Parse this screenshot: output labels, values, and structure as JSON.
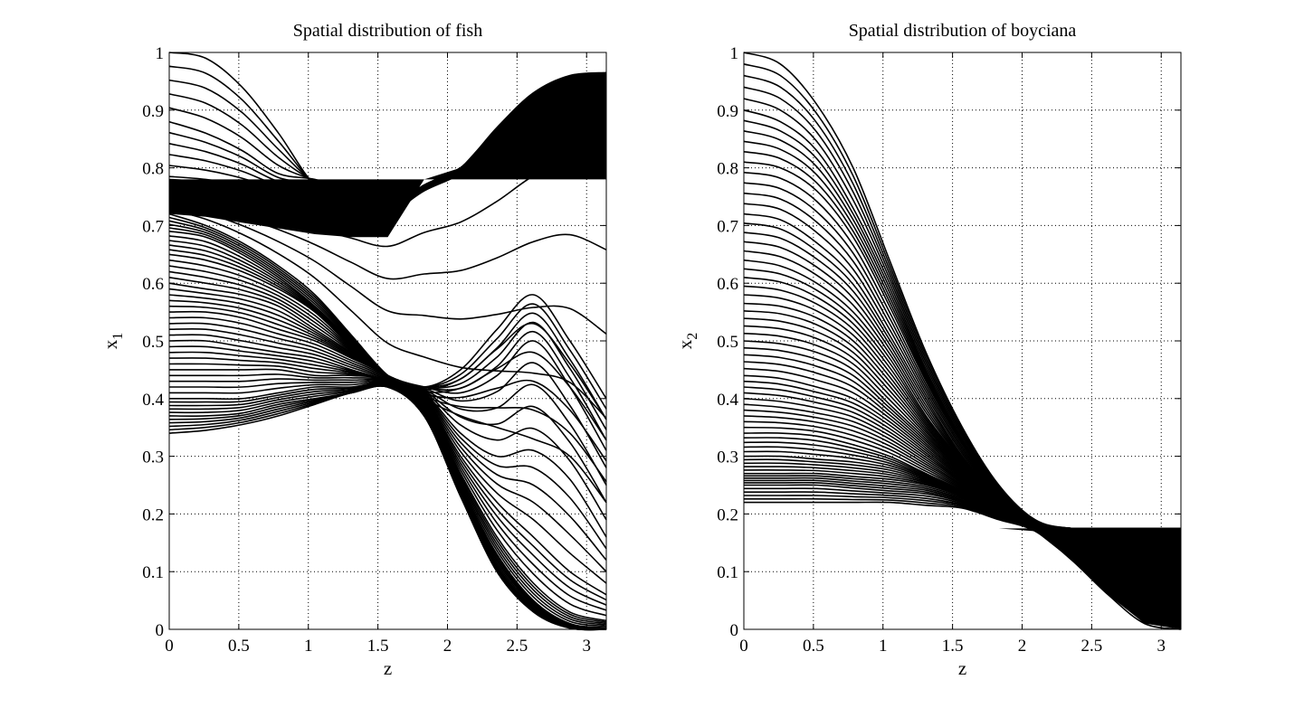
{
  "figure": {
    "line_color": "#000000",
    "background": "#ffffff"
  },
  "chart_data": [
    {
      "type": "line",
      "title": "Spatial distribution of fish",
      "xlabel": "z",
      "ylabel": "x",
      "ylabel_subscript": "1",
      "xlim": [
        0,
        3.1416
      ],
      "ylim": [
        0,
        1
      ],
      "xticks": [
        "0",
        "0.5",
        "1",
        "1.5",
        "2",
        "2.5",
        "3"
      ],
      "yticks": [
        "0",
        "0.1",
        "0.2",
        "0.3",
        "0.4",
        "0.5",
        "0.6",
        "0.7",
        "0.8",
        "0.9",
        "1"
      ],
      "grid": true,
      "legend": "none",
      "x": [
        0,
        0.2618,
        0.5236,
        0.7854,
        1.0472,
        1.309,
        1.5708,
        1.8326,
        2.0944,
        2.3562,
        2.618,
        2.8798,
        3.1416
      ],
      "series": [
        {
          "values": [
            1.0,
            0.99,
            0.94,
            0.86,
            0.77,
            0.74,
            0.73,
            0.77,
            0.8,
            0.87,
            0.93,
            0.96,
            0.965
          ]
        },
        {
          "values": [
            0.88,
            0.86,
            0.83,
            0.79,
            0.78,
            0.76,
            0.73,
            0.77,
            0.8,
            0.86,
            0.92,
            0.95,
            0.96
          ]
        },
        {
          "values": [
            0.785,
            0.78,
            0.77,
            0.755,
            0.74,
            0.74,
            0.73,
            0.77,
            0.8,
            0.85,
            0.91,
            0.945,
            0.955
          ]
        },
        {
          "values": [
            0.76,
            0.755,
            0.745,
            0.735,
            0.725,
            0.72,
            0.72,
            0.76,
            0.79,
            0.84,
            0.9,
            0.94,
            0.95
          ]
        },
        {
          "values": [
            0.72,
            0.7,
            0.67,
            0.63,
            0.58,
            0.51,
            0.44,
            0.4,
            0.37,
            0.35,
            0.33,
            0.3,
            0.22
          ]
        },
        {
          "values": [
            0.69,
            0.68,
            0.65,
            0.61,
            0.56,
            0.5,
            0.44,
            0.42,
            0.45,
            0.52,
            0.58,
            0.5,
            0.4
          ]
        },
        {
          "values": [
            0.65,
            0.64,
            0.62,
            0.59,
            0.55,
            0.49,
            0.44,
            0.42,
            0.41,
            0.44,
            0.5,
            0.42,
            0.31
          ]
        },
        {
          "values": [
            0.6,
            0.59,
            0.58,
            0.56,
            0.52,
            0.48,
            0.44,
            0.41,
            0.34,
            0.3,
            0.31,
            0.26,
            0.16
          ]
        },
        {
          "values": [
            0.55,
            0.55,
            0.54,
            0.52,
            0.5,
            0.47,
            0.44,
            0.4,
            0.3,
            0.22,
            0.16,
            0.1,
            0.06
          ]
        },
        {
          "values": [
            0.5,
            0.5,
            0.49,
            0.48,
            0.47,
            0.45,
            0.43,
            0.39,
            0.27,
            0.16,
            0.08,
            0.03,
            0.015
          ]
        },
        {
          "values": [
            0.45,
            0.45,
            0.45,
            0.45,
            0.44,
            0.44,
            0.43,
            0.38,
            0.25,
            0.13,
            0.05,
            0.01,
            0.003
          ]
        },
        {
          "values": [
            0.4,
            0.4,
            0.4,
            0.41,
            0.42,
            0.42,
            0.425,
            0.37,
            0.24,
            0.11,
            0.04,
            0.005,
            0.0
          ]
        },
        {
          "values": [
            0.37,
            0.37,
            0.375,
            0.39,
            0.4,
            0.41,
            0.42,
            0.37,
            0.235,
            0.1,
            0.035,
            0.003,
            0.0
          ]
        },
        {
          "values": [
            0.34,
            0.345,
            0.355,
            0.37,
            0.39,
            0.41,
            0.42,
            0.37,
            0.23,
            0.1,
            0.03,
            0.002,
            0.0
          ]
        }
      ]
    },
    {
      "type": "line",
      "title": "Spatial distribution of boyciana",
      "xlabel": "z",
      "ylabel": "x",
      "ylabel_subscript": "2",
      "xlim": [
        0,
        3.1416
      ],
      "ylim": [
        0,
        1
      ],
      "xticks": [
        "0",
        "0.5",
        "1",
        "1.5",
        "2",
        "2.5",
        "3"
      ],
      "yticks": [
        "0",
        "0.1",
        "0.2",
        "0.3",
        "0.4",
        "0.5",
        "0.6",
        "0.7",
        "0.8",
        "0.9",
        "1"
      ],
      "grid": true,
      "legend": "none",
      "x": [
        0,
        0.2618,
        0.5236,
        0.7854,
        1.0472,
        1.309,
        1.5708,
        1.8326,
        2.0944,
        2.3562,
        2.618,
        2.8798,
        3.1416
      ],
      "series": [
        {
          "values": [
            1.0,
            0.98,
            0.91,
            0.8,
            0.64,
            0.48,
            0.35,
            0.25,
            0.19,
            0.175,
            0.175,
            0.175,
            0.175
          ]
        },
        {
          "values": [
            0.9,
            0.88,
            0.83,
            0.73,
            0.6,
            0.45,
            0.33,
            0.24,
            0.185,
            0.175,
            0.175,
            0.175,
            0.175
          ]
        },
        {
          "values": [
            0.81,
            0.8,
            0.76,
            0.68,
            0.56,
            0.43,
            0.32,
            0.235,
            0.183,
            0.175,
            0.175,
            0.175,
            0.175
          ]
        },
        {
          "values": [
            0.72,
            0.71,
            0.67,
            0.61,
            0.51,
            0.4,
            0.3,
            0.23,
            0.18,
            0.175,
            0.175,
            0.175,
            0.175
          ]
        },
        {
          "values": [
            0.64,
            0.63,
            0.6,
            0.55,
            0.47,
            0.37,
            0.29,
            0.22,
            0.18,
            0.175,
            0.175,
            0.175,
            0.175
          ]
        },
        {
          "values": [
            0.565,
            0.56,
            0.54,
            0.5,
            0.43,
            0.35,
            0.28,
            0.22,
            0.178,
            0.175,
            0.175,
            0.175,
            0.175
          ]
        },
        {
          "values": [
            0.5,
            0.495,
            0.48,
            0.45,
            0.39,
            0.33,
            0.27,
            0.215,
            0.177,
            0.175,
            0.175,
            0.175,
            0.175
          ]
        },
        {
          "values": [
            0.44,
            0.435,
            0.42,
            0.4,
            0.36,
            0.31,
            0.26,
            0.21,
            0.176,
            0.175,
            0.175,
            0.175,
            0.175
          ]
        },
        {
          "values": [
            0.39,
            0.385,
            0.375,
            0.36,
            0.33,
            0.29,
            0.25,
            0.205,
            0.175,
            0.175,
            0.175,
            0.175,
            0.175
          ]
        },
        {
          "values": [
            0.34,
            0.34,
            0.335,
            0.32,
            0.3,
            0.27,
            0.24,
            0.2,
            0.175,
            0.175,
            0.175,
            0.175,
            0.175
          ]
        },
        {
          "values": [
            0.3,
            0.3,
            0.295,
            0.29,
            0.28,
            0.26,
            0.235,
            0.2,
            0.175,
            0.175,
            0.175,
            0.175,
            0.175
          ]
        },
        {
          "values": [
            0.27,
            0.27,
            0.27,
            0.265,
            0.26,
            0.25,
            0.23,
            0.2,
            0.175,
            0.175,
            0.175,
            0.175,
            0.175
          ]
        },
        {
          "values": [
            0.25,
            0.25,
            0.25,
            0.245,
            0.24,
            0.235,
            0.22,
            0.195,
            0.175,
            0.175,
            0.175,
            0.175,
            0.175
          ]
        },
        {
          "values": [
            0.22,
            0.22,
            0.22,
            0.22,
            0.22,
            0.215,
            0.21,
            0.19,
            0.17,
            0.12,
            0.06,
            0.01,
            0.0
          ]
        }
      ]
    }
  ]
}
